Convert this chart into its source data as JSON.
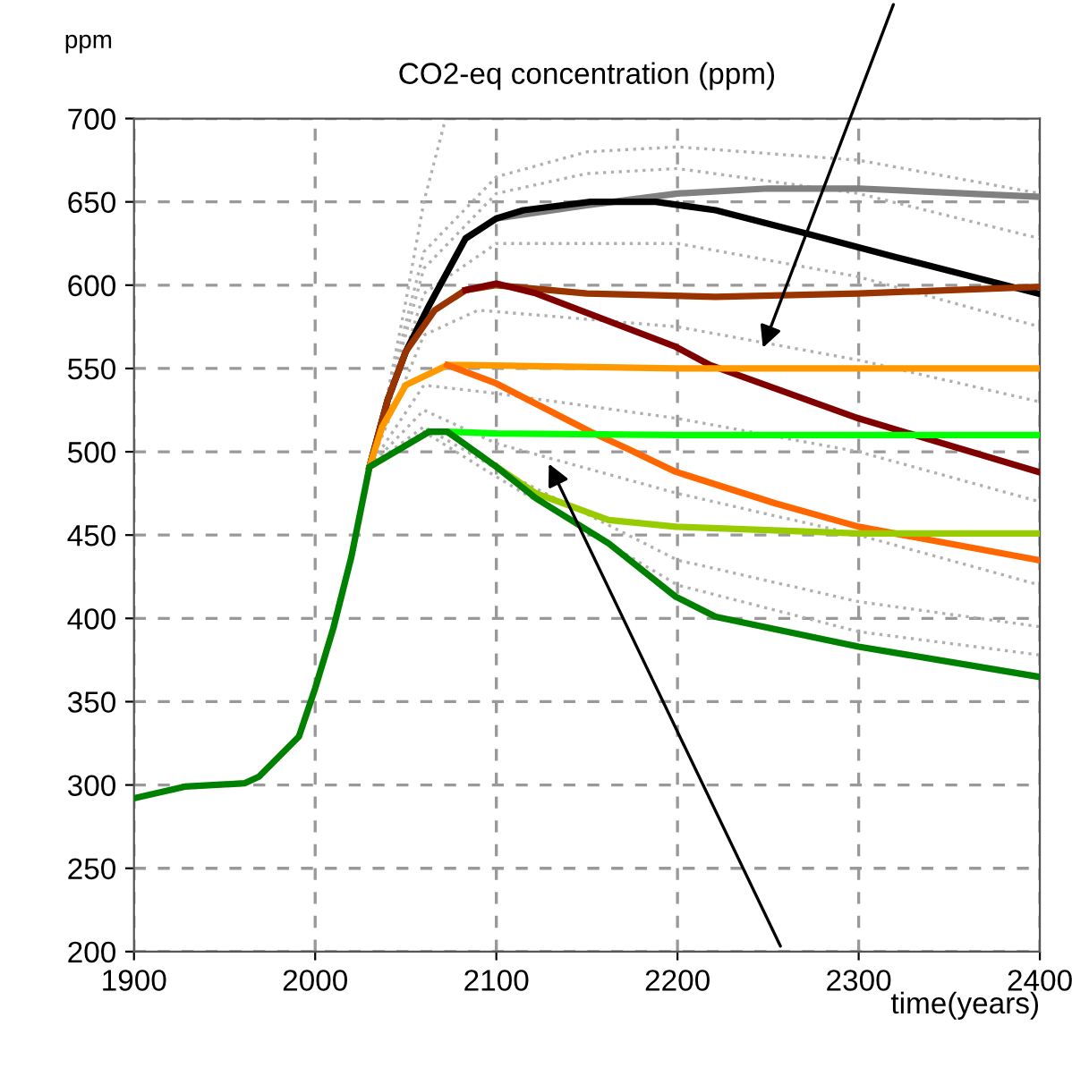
{
  "chart_data": {
    "type": "line",
    "title": "CO2-eq concentration (ppm)",
    "ylabel": "ppm",
    "xlabel": "time(years)",
    "xlim": [
      1900,
      2400
    ],
    "xticks": [
      1900,
      2000,
      2100,
      2200,
      2300,
      2400
    ],
    "ylim": [
      200,
      700
    ],
    "yticks": [
      200,
      250,
      300,
      350,
      400,
      450,
      500,
      550,
      600,
      650,
      700
    ],
    "grid": true,
    "series": [
      {
        "color": "#b0b0b0",
        "line_style": "dotted",
        "x": [
          2030,
          2040,
          2050,
          2060,
          2072
        ],
        "values": [
          491,
          535,
          590,
          650,
          700
        ]
      },
      {
        "color": "#b0b0b0",
        "line_style": "dotted",
        "x": [
          2030,
          2060,
          2100,
          2150,
          2200,
          2300,
          2400
        ],
        "values": [
          491,
          620,
          665,
          680,
          683,
          675,
          655
        ]
      },
      {
        "color": "#b0b0b0",
        "line_style": "dotted",
        "x": [
          2030,
          2060,
          2100,
          2150,
          2200,
          2300,
          2400
        ],
        "values": [
          491,
          610,
          655,
          667,
          670,
          655,
          628
        ]
      },
      {
        "color": "#b0b0b0",
        "line_style": "dotted",
        "x": [
          2030,
          2060,
          2100,
          2200,
          2300,
          2400
        ],
        "values": [
          491,
          595,
          625,
          625,
          605,
          575
        ]
      },
      {
        "color": "#b0b0b0",
        "line_style": "dotted",
        "x": [
          2030,
          2060,
          2090,
          2200,
          2300,
          2400
        ],
        "values": [
          491,
          570,
          585,
          575,
          555,
          530
        ]
      },
      {
        "color": "#b0b0b0",
        "line_style": "dotted",
        "x": [
          2030,
          2060,
          2100,
          2200,
          2300,
          2400
        ],
        "values": [
          491,
          540,
          535,
          520,
          500,
          470
        ]
      },
      {
        "color": "#b0b0b0",
        "line_style": "dotted",
        "x": [
          2030,
          2060,
          2100,
          2200,
          2300,
          2400
        ],
        "values": [
          491,
          525,
          505,
          475,
          450,
          420
        ]
      },
      {
        "color": "#b0b0b0",
        "line_style": "dotted",
        "x": [
          2030,
          2060,
          2100,
          2200,
          2300,
          2400
        ],
        "values": [
          491,
          515,
          490,
          435,
          410,
          395
        ]
      },
      {
        "color": "#b0b0b0",
        "line_style": "dotted",
        "x": [
          2030,
          2060,
          2100,
          2200,
          2300,
          2400
        ],
        "values": [
          491,
          512,
          485,
          420,
          392,
          378
        ]
      },
      {
        "color": "#808080",
        "x": [
          2030,
          2040,
          2050,
          2063,
          2083,
          2100,
          2150,
          2200,
          2250,
          2300,
          2400
        ],
        "values": [
          491,
          531,
          560,
          588,
          628,
          640,
          648,
          655,
          658,
          658,
          653
        ]
      },
      {
        "color": "#000000",
        "x": [
          2030,
          2040,
          2050,
          2063,
          2083,
          2100,
          2115,
          2152,
          2188,
          2221,
          2271,
          2320,
          2399
        ],
        "values": [
          491,
          531,
          560,
          588,
          628,
          640,
          645,
          650,
          650,
          645,
          631,
          617,
          595
        ]
      },
      {
        "color": "#993300",
        "x": [
          2030,
          2040,
          2050,
          2066,
          2083,
          2100,
          2150,
          2221,
          2300,
          2399
        ],
        "values": [
          491,
          531,
          560,
          585,
          597,
          600,
          595,
          593,
          595,
          599
        ]
      },
      {
        "color": "#800000",
        "x": [
          2083,
          2100,
          2122,
          2199,
          2218,
          2300,
          2399
        ],
        "values": [
          597,
          601,
          595,
          563,
          552,
          520,
          488
        ]
      },
      {
        "color": "#ff9900",
        "x": [
          2030,
          2037,
          2050,
          2073,
          2083,
          2200,
          2300,
          2400
        ],
        "values": [
          491,
          515,
          540,
          552,
          552,
          550,
          550,
          550
        ]
      },
      {
        "color": "#ff6600",
        "x": [
          2073,
          2100,
          2152,
          2172,
          2199,
          2254,
          2300,
          2399
        ],
        "values": [
          552,
          541,
          512,
          502,
          488,
          469,
          455,
          435
        ]
      },
      {
        "color": "#00ff00",
        "x": [
          2063,
          2073,
          2100,
          2200,
          2300,
          2400
        ],
        "values": [
          512,
          512,
          511,
          510,
          510,
          510
        ]
      },
      {
        "color": "#99cc00",
        "x": [
          2100,
          2122,
          2162,
          2199,
          2300,
          2400
        ],
        "values": [
          491,
          475,
          459,
          455,
          451,
          451
        ]
      },
      {
        "color": "#008000",
        "x": [
          1900,
          1928,
          1961,
          1969,
          1991,
          2000,
          2010,
          2020,
          2030,
          2063,
          2073,
          2100,
          2122,
          2162,
          2199,
          2221,
          2300,
          2399
        ],
        "values": [
          292,
          299,
          301,
          305,
          329,
          358,
          394,
          437,
          491,
          512,
          512,
          491,
          472,
          445,
          413,
          401,
          383,
          365
        ]
      }
    ]
  }
}
